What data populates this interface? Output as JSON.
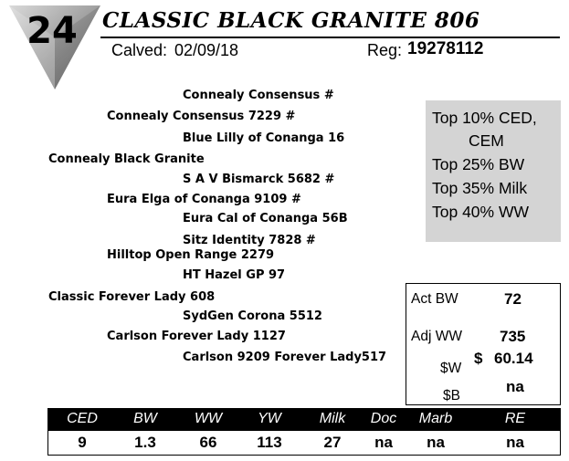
{
  "header": {
    "lot_number": "24",
    "animal_name": "CLASSIC BLACK GRANITE 806",
    "calved_label": "Calved:",
    "calved_date": "02/09/18",
    "reg_label": "Reg:",
    "reg_number": "19278112"
  },
  "pedigree": {
    "sire": "Connealy Black Granite",
    "sire_sire": "Connealy Consensus 7229 #",
    "sire_sire_sire": "Connealy Consensus #",
    "sire_sire_dam": "Blue Lilly of Conanga 16",
    "sire_dam": "Eura Elga of Conanga 9109 #",
    "sire_dam_sire": "S A V Bismarck 5682 #",
    "sire_dam_dam": "Eura Cal of Conanga 56B",
    "dam": "Classic Forever Lady 608",
    "dam_sire": "Hilltop Open Range 2279",
    "dam_sire_sire": "Sitz Identity 7828 #",
    "dam_sire_dam": "HT Hazel GP 97",
    "dam_dam": "Carlson Forever Lady 1127",
    "dam_dam_sire": "SydGen Corona 5512",
    "dam_dam_dam": "Carlson 9209 Forever Lady517"
  },
  "rankings": {
    "line1": "Top 10% CED,",
    "line2": "CEM",
    "line3": "Top 25% BW",
    "line4": "Top 35% Milk",
    "line5": "Top 40% WW"
  },
  "weights": {
    "act_bw_label": "Act BW",
    "act_bw_value": "72",
    "adj_ww_label": "Adj WW",
    "adj_ww_value": "735",
    "w_label": "$W",
    "w_currency": "$",
    "w_value": "60.14",
    "b_label": "$B",
    "b_value": "na"
  },
  "epd": {
    "headers": [
      "CED",
      "BW",
      "WW",
      "YW",
      "Milk",
      "Doc",
      "Marb",
      "RE"
    ],
    "values": [
      "9",
      "1.3",
      "66",
      "113",
      "27",
      "na",
      "na",
      "na"
    ]
  },
  "colors": {
    "ranking_box": "#d4d4d4",
    "header_bar": "#000000"
  }
}
